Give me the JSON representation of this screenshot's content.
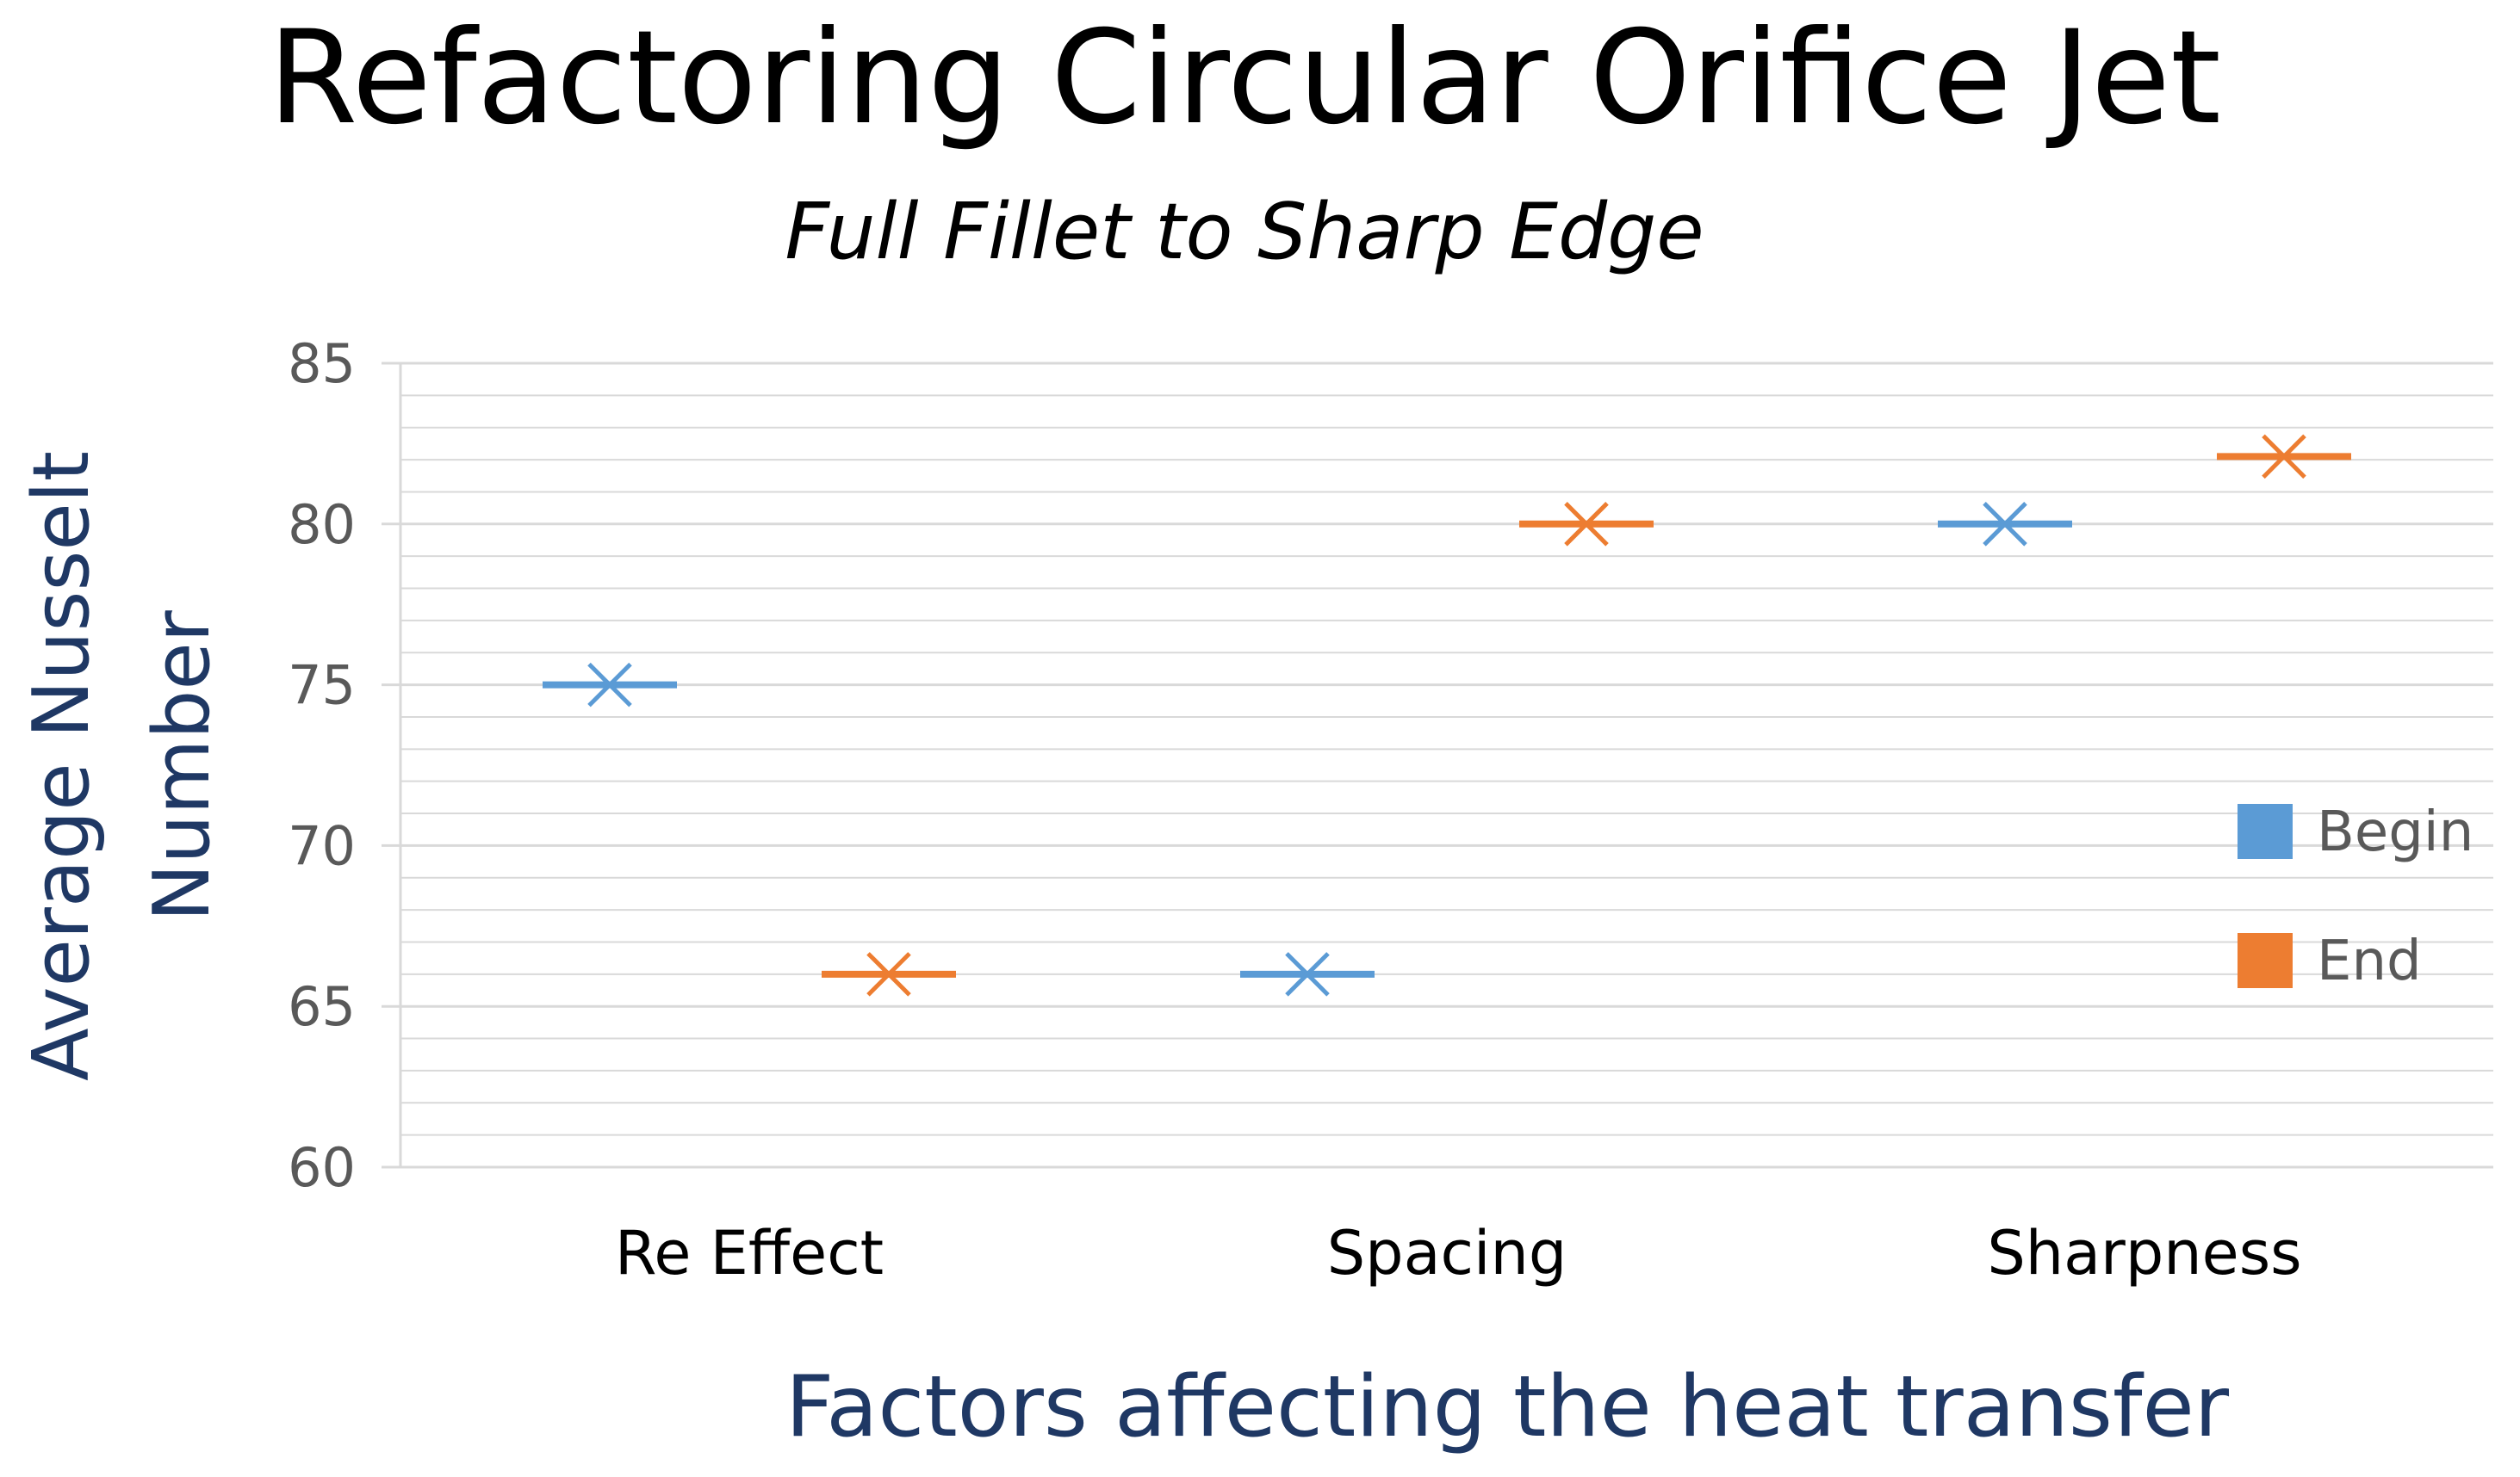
{
  "chart_data": {
    "type": "scatter",
    "title": "Refactoring Circular Orifice Jet",
    "subtitle": "Full Fillet to Sharp Edge",
    "xlabel": "Factors affecting the heat transfer",
    "ylabel_lines": [
      "Average Nusselt",
      "Number"
    ],
    "categories": [
      "Re Effect",
      "Spacing",
      "Sharpness"
    ],
    "ylim": [
      60,
      85
    ],
    "yticks": [
      60,
      65,
      70,
      75,
      80,
      85
    ],
    "minor_step": 1,
    "grid": true,
    "legend_position": "right",
    "series": [
      {
        "name": "Begin",
        "color": "#5b9bd5",
        "values": [
          75,
          66,
          80
        ]
      },
      {
        "name": "End",
        "color": "#ed7d31",
        "values": [
          66,
          80,
          82.1
        ]
      }
    ]
  }
}
